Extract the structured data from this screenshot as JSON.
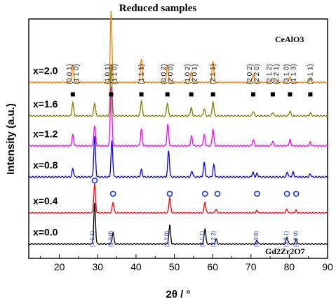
{
  "chart_data": {
    "type": "line",
    "title": "Reduced samples",
    "xlabel": "2θ / °",
    "ylabel": "Intensity (a.u.)",
    "xlim": [
      12,
      90
    ],
    "x_ticks": [
      20,
      30,
      40,
      50,
      60,
      70,
      80,
      90
    ],
    "phase_top": "CeAlO3",
    "phase_bottom": "Gd2Zr2O7",
    "series": [
      {
        "name": "x=0.0",
        "color": "#000000",
        "baseline": 0.06,
        "peaks": [
          [
            29.2,
            0.17
          ],
          [
            34.0,
            0.05
          ],
          [
            48.8,
            0.08
          ],
          [
            58.0,
            0.065
          ],
          [
            60.9,
            0.02
          ],
          [
            71.6,
            0.015
          ],
          [
            79.4,
            0.03
          ],
          [
            81.8,
            0.02
          ]
        ]
      },
      {
        "name": "x=0.4",
        "color": "#ff0000",
        "baseline": 0.19,
        "peaks": [
          [
            29.2,
            0.12
          ],
          [
            34.0,
            0.045
          ],
          [
            48.8,
            0.065
          ],
          [
            58.0,
            0.045
          ],
          [
            60.9,
            0.015
          ],
          [
            71.6,
            0.01
          ],
          [
            79.4,
            0.015
          ],
          [
            81.8,
            0.01
          ]
        ]
      },
      {
        "name": "x=0.8",
        "color": "#0000ff",
        "baseline": 0.34,
        "peaks": [
          [
            23.5,
            0.035
          ],
          [
            29.2,
            0.17
          ],
          [
            33.7,
            0.15
          ],
          [
            41.4,
            0.03
          ],
          [
            48.5,
            0.11
          ],
          [
            54.6,
            0.025
          ],
          [
            57.8,
            0.06
          ],
          [
            60.3,
            0.05
          ],
          [
            70.5,
            0.02
          ],
          [
            71.6,
            0.015
          ],
          [
            79.5,
            0.02
          ],
          [
            81.0,
            0.02
          ],
          [
            85.5,
            0.012
          ]
        ]
      },
      {
        "name": "x=1.2",
        "color": "#ff00ff",
        "baseline": 0.47,
        "peaks": [
          [
            23.5,
            0.045
          ],
          [
            29.2,
            0.085
          ],
          [
            33.5,
            0.25
          ],
          [
            41.4,
            0.07
          ],
          [
            48.3,
            0.09
          ],
          [
            54.5,
            0.04
          ],
          [
            57.8,
            0.045
          ],
          [
            60.1,
            0.07
          ],
          [
            70.6,
            0.025
          ],
          [
            75.7,
            0.02
          ],
          [
            80.2,
            0.025
          ],
          [
            85.5,
            0.015
          ]
        ]
      },
      {
        "name": "x=1.6",
        "color": "#808000",
        "baseline": 0.595,
        "peaks": [
          [
            23.5,
            0.055
          ],
          [
            29.2,
            0.055
          ],
          [
            33.5,
            0.22
          ],
          [
            41.4,
            0.065
          ],
          [
            48.2,
            0.055
          ],
          [
            54.4,
            0.035
          ],
          [
            57.8,
            0.03
          ],
          [
            60.1,
            0.06
          ],
          [
            70.6,
            0.02
          ],
          [
            75.7,
            0.015
          ],
          [
            80.2,
            0.02
          ],
          [
            85.5,
            0.012
          ]
        ]
      },
      {
        "name": "x=2.0",
        "color": "#ff8000",
        "baseline": 0.735,
        "peaks": [
          [
            23.5,
            0.075
          ],
          [
            33.5,
            0.3
          ],
          [
            41.4,
            0.1
          ],
          [
            48.2,
            0.075
          ],
          [
            54.4,
            0.045
          ],
          [
            60.1,
            0.09
          ],
          [
            70.6,
            0.035
          ],
          [
            75.7,
            0.02
          ],
          [
            80.2,
            0.025
          ],
          [
            85.5,
            0.02
          ]
        ]
      }
    ],
    "top_hkl": [
      {
        "x": 23.5,
        "lines": [
          "(0 0 1)",
          "(1 1 0)"
        ]
      },
      {
        "x": 33.5,
        "lines": [
          "(1 0 1)",
          "(1 1 0)"
        ]
      },
      {
        "x": 41.4,
        "lines": [
          "(1 1 1)"
        ]
      },
      {
        "x": 48.2,
        "lines": [
          "(0 0 2)",
          "(2 0 0)"
        ]
      },
      {
        "x": 54.4,
        "lines": [
          "(1 0 2)",
          "(2 0 1)"
        ]
      },
      {
        "x": 60.1,
        "lines": [
          "(2 1 1)"
        ]
      },
      {
        "x": 70.6,
        "lines": [
          "(2 0 2)",
          "(2 2 0)"
        ]
      },
      {
        "x": 75.7,
        "lines": [
          "(2 1 2)",
          "(2 2 1)"
        ]
      },
      {
        "x": 80.2,
        "lines": [
          "(3 1 0)",
          "(1 1 3)"
        ]
      },
      {
        "x": 85.5,
        "lines": [
          "(3 1 1)"
        ]
      }
    ],
    "bottom_hkl": [
      {
        "x": 28.5,
        "label": "(1 1 1)"
      },
      {
        "x": 33.3,
        "label": "(2 0 0)"
      },
      {
        "x": 48.0,
        "label": "(2 2 0)"
      },
      {
        "x": 57.2,
        "label": "(3 1 1)"
      },
      {
        "x": 60.2,
        "label": "(2 2 2)"
      },
      {
        "x": 71.3,
        "label": "(4 0 0)"
      },
      {
        "x": 79.1,
        "label": "(3 3 1)"
      },
      {
        "x": 81.7,
        "label": "(4 2 0)"
      }
    ],
    "square_markers_x": [
      23.5,
      33.5,
      41.4,
      48.2,
      54.4,
      60.1,
      70.6,
      75.7,
      80.2,
      85.5
    ],
    "circle_markers_x": [
      29.2,
      34.0,
      48.8,
      58.0,
      60.9,
      71.6,
      79.4,
      81.8
    ]
  }
}
